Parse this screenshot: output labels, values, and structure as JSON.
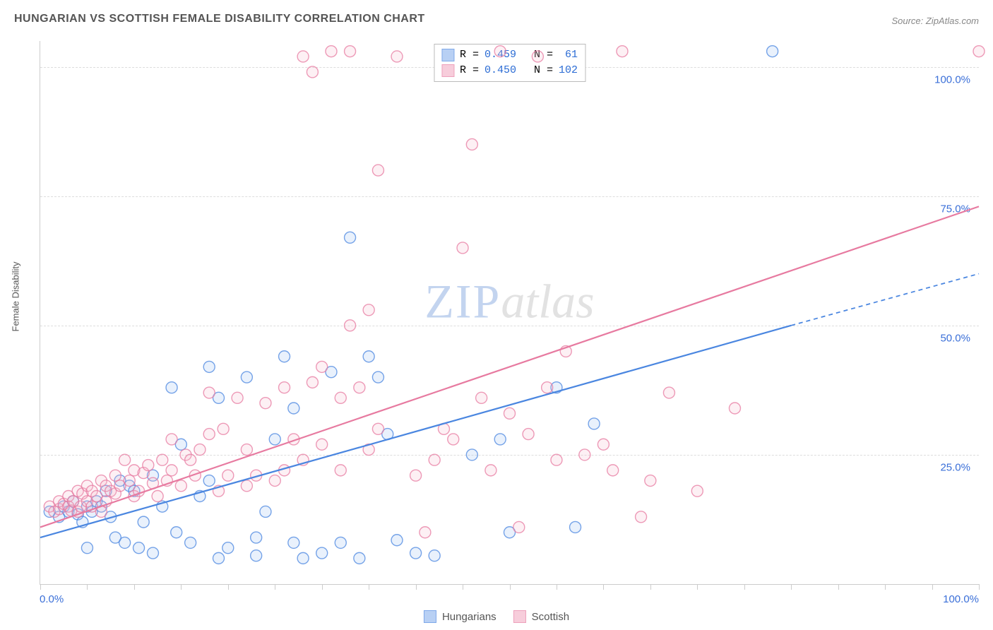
{
  "title": "HUNGARIAN VS SCOTTISH FEMALE DISABILITY CORRELATION CHART",
  "source_label": "Source: ZipAtlas.com",
  "ylabel": "Female Disability",
  "watermark": {
    "part1": "ZIP",
    "part2": "atlas"
  },
  "chart": {
    "type": "scatter",
    "background_color": "#ffffff",
    "grid_color": "#dddddd",
    "axis_color": "#cccccc",
    "xlim": [
      0,
      100
    ],
    "ylim": [
      0,
      105
    ],
    "xtick_positions": [
      0,
      5,
      10,
      15,
      20,
      25,
      30,
      35,
      40,
      45,
      50,
      55,
      60,
      65,
      70,
      75,
      80,
      85,
      90,
      95,
      100
    ],
    "ytick_positions": [
      25,
      50,
      75,
      100
    ],
    "ytick_labels": [
      "25.0%",
      "50.0%",
      "75.0%",
      "100.0%"
    ],
    "x_axis_label_left": "0.0%",
    "x_axis_label_right": "100.0%",
    "ytick_label_color": "#3a6fd8",
    "ytick_label_fontsize": 15,
    "label_fontsize": 13,
    "title_fontsize": 16,
    "title_color": "#555555",
    "marker_radius": 8,
    "marker_stroke_width": 1.4,
    "marker_fill_opacity": 0.22,
    "line_width": 2.2,
    "line_dash_extrapolate": "6,5"
  },
  "series": [
    {
      "name": "Hungarians",
      "color_stroke": "#4a86e0",
      "color_fill": "#9bbdf0",
      "R": "0.459",
      "N": "61",
      "trend": {
        "x1": 0,
        "y1": 9,
        "x2_solid": 80,
        "y2_solid": 50,
        "x2": 100,
        "y2": 60
      },
      "points": [
        [
          1,
          14
        ],
        [
          2,
          13
        ],
        [
          2.5,
          15
        ],
        [
          3,
          14
        ],
        [
          3.5,
          16
        ],
        [
          4,
          13.5
        ],
        [
          4.5,
          12
        ],
        [
          5,
          15
        ],
        [
          5,
          7
        ],
        [
          5.5,
          14
        ],
        [
          6,
          16
        ],
        [
          6.5,
          15
        ],
        [
          7,
          18
        ],
        [
          7.5,
          13
        ],
        [
          8,
          9
        ],
        [
          8.5,
          20
        ],
        [
          9,
          8
        ],
        [
          9.5,
          19
        ],
        [
          10,
          18
        ],
        [
          10.5,
          7
        ],
        [
          11,
          12
        ],
        [
          12,
          21
        ],
        [
          12,
          6
        ],
        [
          13,
          15
        ],
        [
          14,
          38
        ],
        [
          14.5,
          10
        ],
        [
          15,
          27
        ],
        [
          16,
          8
        ],
        [
          17,
          17
        ],
        [
          18,
          20
        ],
        [
          18,
          42
        ],
        [
          19,
          36
        ],
        [
          19,
          5
        ],
        [
          20,
          7
        ],
        [
          22,
          40
        ],
        [
          23,
          9
        ],
        [
          23,
          5.5
        ],
        [
          24,
          14
        ],
        [
          25,
          28
        ],
        [
          26,
          44
        ],
        [
          27,
          34
        ],
        [
          27,
          8
        ],
        [
          28,
          5
        ],
        [
          30,
          6
        ],
        [
          31,
          41
        ],
        [
          32,
          8
        ],
        [
          33,
          67
        ],
        [
          34,
          5
        ],
        [
          35,
          44
        ],
        [
          36,
          40
        ],
        [
          37,
          29
        ],
        [
          38,
          8.5
        ],
        [
          40,
          6
        ],
        [
          42,
          5.5
        ],
        [
          46,
          25
        ],
        [
          49,
          28
        ],
        [
          50,
          10
        ],
        [
          55,
          38
        ],
        [
          57,
          11
        ],
        [
          59,
          31
        ],
        [
          78,
          103
        ]
      ]
    },
    {
      "name": "Scottish",
      "color_stroke": "#e77aa0",
      "color_fill": "#f4b9cd",
      "R": "0.450",
      "N": "102",
      "trend": {
        "x1": 0,
        "y1": 11,
        "x2_solid": 100,
        "y2_solid": 73,
        "x2": 100,
        "y2": 73
      },
      "points": [
        [
          1,
          15
        ],
        [
          1.5,
          14
        ],
        [
          2,
          14.5
        ],
        [
          2,
          16
        ],
        [
          2.5,
          15.5
        ],
        [
          3,
          15
        ],
        [
          3,
          17
        ],
        [
          3.3,
          14.2
        ],
        [
          3.5,
          16
        ],
        [
          4,
          14
        ],
        [
          4,
          18
        ],
        [
          4.3,
          15
        ],
        [
          4.5,
          17.5
        ],
        [
          5,
          16
        ],
        [
          5,
          19
        ],
        [
          5.5,
          18
        ],
        [
          5.5,
          15
        ],
        [
          6,
          17
        ],
        [
          6.5,
          20
        ],
        [
          6.5,
          14
        ],
        [
          7,
          19
        ],
        [
          7,
          16
        ],
        [
          7.5,
          18
        ],
        [
          8,
          21
        ],
        [
          8,
          17.5
        ],
        [
          8.5,
          19
        ],
        [
          9,
          24
        ],
        [
          9.5,
          20
        ],
        [
          10,
          22
        ],
        [
          10,
          17
        ],
        [
          10.5,
          18
        ],
        [
          11,
          21.5
        ],
        [
          11.5,
          23
        ],
        [
          12,
          19.5
        ],
        [
          12.5,
          17
        ],
        [
          13,
          24
        ],
        [
          13.5,
          20
        ],
        [
          14,
          22
        ],
        [
          14,
          28
        ],
        [
          15,
          19
        ],
        [
          15.5,
          25
        ],
        [
          16,
          24
        ],
        [
          16.5,
          21
        ],
        [
          17,
          26
        ],
        [
          18,
          37
        ],
        [
          18,
          29
        ],
        [
          19,
          18
        ],
        [
          19.5,
          30
        ],
        [
          20,
          21
        ],
        [
          21,
          36
        ],
        [
          22,
          26
        ],
        [
          22,
          19
        ],
        [
          23,
          21
        ],
        [
          24,
          35
        ],
        [
          25,
          20
        ],
        [
          26,
          22
        ],
        [
          26,
          38
        ],
        [
          27,
          28
        ],
        [
          28,
          24
        ],
        [
          28,
          102
        ],
        [
          29,
          39
        ],
        [
          29,
          99
        ],
        [
          30,
          42
        ],
        [
          30,
          27
        ],
        [
          31,
          103
        ],
        [
          32,
          22
        ],
        [
          32,
          36
        ],
        [
          33,
          50
        ],
        [
          33,
          103
        ],
        [
          34,
          38
        ],
        [
          35,
          26
        ],
        [
          35,
          53
        ],
        [
          36,
          80
        ],
        [
          36,
          30
        ],
        [
          38,
          102
        ],
        [
          40,
          21
        ],
        [
          41,
          10
        ],
        [
          42,
          24
        ],
        [
          43,
          30
        ],
        [
          44,
          28
        ],
        [
          45,
          65
        ],
        [
          46,
          85
        ],
        [
          47,
          36
        ],
        [
          48,
          22
        ],
        [
          49,
          103
        ],
        [
          50,
          33
        ],
        [
          51,
          11
        ],
        [
          52,
          29
        ],
        [
          53,
          102
        ],
        [
          54,
          38
        ],
        [
          55,
          24
        ],
        [
          56,
          45
        ],
        [
          58,
          25
        ],
        [
          60,
          27
        ],
        [
          61,
          22
        ],
        [
          62,
          103
        ],
        [
          64,
          13
        ],
        [
          65,
          20
        ],
        [
          67,
          37
        ],
        [
          70,
          18
        ],
        [
          74,
          34
        ],
        [
          100,
          103
        ]
      ]
    }
  ],
  "legend_top": {
    "R_label": "R =",
    "N_label": "N ="
  },
  "legend_bottom": [
    {
      "label": "Hungarians",
      "series_index": 0
    },
    {
      "label": "Scottish",
      "series_index": 1
    }
  ]
}
